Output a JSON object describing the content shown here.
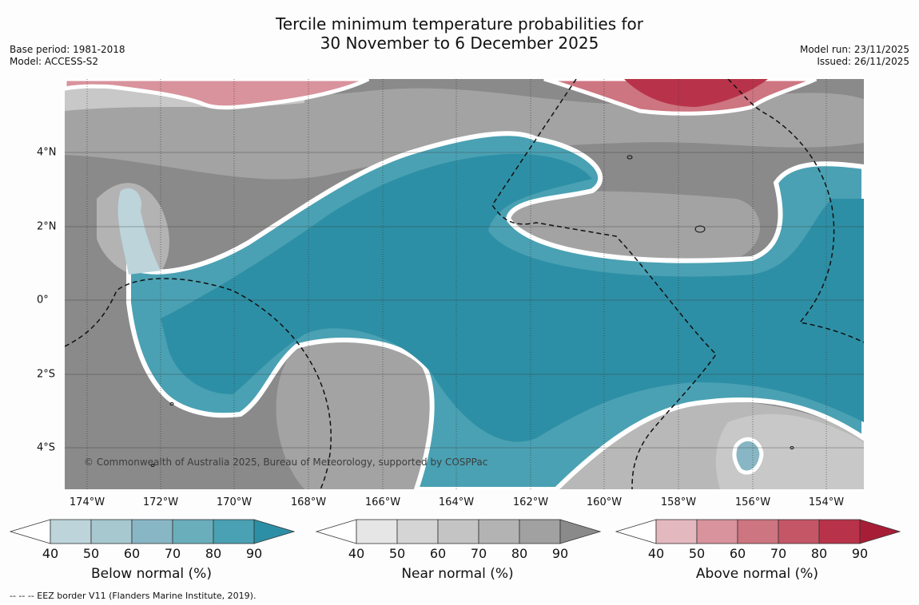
{
  "title_line1": "Tercile minimum temperature probabilities for",
  "title_line2": "30 November to 6 December 2025",
  "base_period": "Base period: 1981-2018",
  "model": "Model: ACCESS-S2",
  "model_run": "Model run: 23/11/2025",
  "issued": "Issued: 26/11/2025",
  "copyright": "© Commonwealth of Australia 2025, Bureau of Meteorology, supported by COSPPac",
  "lon_labels": [
    "174°W",
    "172°W",
    "170°W",
    "168°W",
    "166°W",
    "164°W",
    "162°W",
    "160°W",
    "158°W",
    "156°W",
    "154°W"
  ],
  "lat_labels": [
    "4°N",
    "2°N",
    "0°",
    "2°S",
    "4°S"
  ],
  "colorbars": [
    {
      "title": "Below normal (%)",
      "ticks": [
        "40",
        "50",
        "60",
        "70",
        "80",
        "90"
      ],
      "colors": [
        "#ffffff",
        "#bcd4da",
        "#a6c8ce",
        "#88b6c4",
        "#6aaebb",
        "#4aa1b3",
        "#2d8fa5"
      ]
    },
    {
      "title": "Near normal (%)",
      "ticks": [
        "40",
        "50",
        "60",
        "70",
        "80",
        "90"
      ],
      "colors": [
        "#ffffff",
        "#e6e6e6",
        "#d5d5d5",
        "#c4c4c4",
        "#b3b3b3",
        "#a1a1a1",
        "#8a8a8a"
      ]
    },
    {
      "title": "Above normal (%)",
      "ticks": [
        "40",
        "50",
        "60",
        "70",
        "80",
        "90"
      ],
      "colors": [
        "#ffffff",
        "#e3b8bf",
        "#d8939c",
        "#cd7580",
        "#c45666",
        "#b8334a",
        "#a81d36"
      ]
    }
  ],
  "legend_note": "--  --  -- EEZ border V11 (Flanders Marine Institute, 2019)."
}
